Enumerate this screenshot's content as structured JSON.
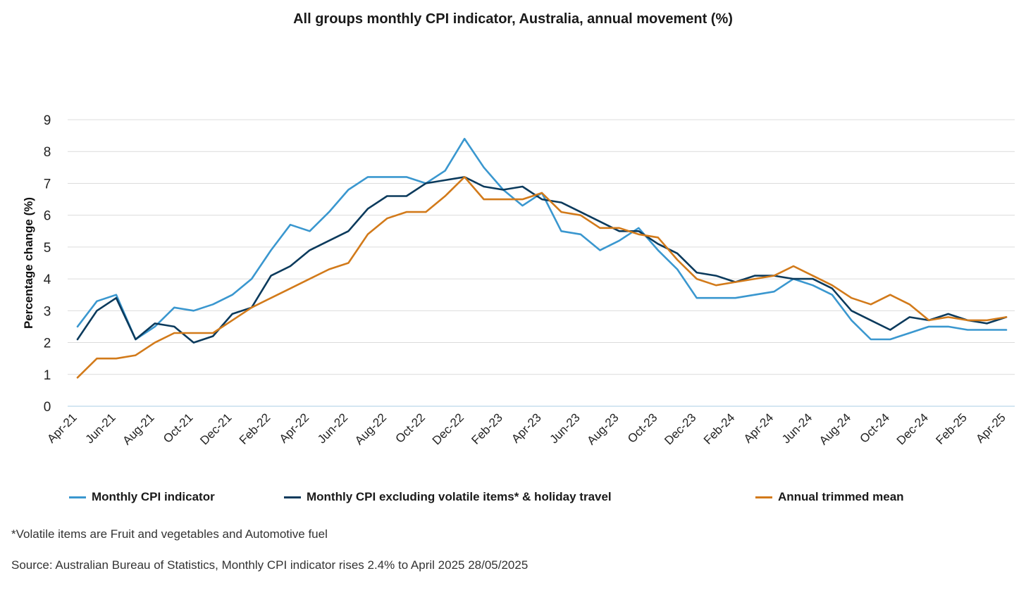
{
  "chart_data": {
    "type": "line",
    "title": "All groups monthly CPI indicator, Australia, annual movement (%)",
    "ylabel": "Percentage change (%)",
    "xlabel": "",
    "ylim": [
      0,
      9
    ],
    "yticks": [
      0,
      1,
      2,
      3,
      4,
      5,
      6,
      7,
      8,
      9
    ],
    "grid": true,
    "legend_position": "bottom",
    "x": [
      "Apr-21",
      "May-21",
      "Jun-21",
      "Jul-21",
      "Aug-21",
      "Sep-21",
      "Oct-21",
      "Nov-21",
      "Dec-21",
      "Jan-22",
      "Feb-22",
      "Mar-22",
      "Apr-22",
      "May-22",
      "Jun-22",
      "Jul-22",
      "Aug-22",
      "Sep-22",
      "Oct-22",
      "Nov-22",
      "Dec-22",
      "Jan-23",
      "Feb-23",
      "Mar-23",
      "Apr-23",
      "May-23",
      "Jun-23",
      "Jul-23",
      "Aug-23",
      "Sep-23",
      "Oct-23",
      "Nov-23",
      "Dec-23",
      "Jan-24",
      "Feb-24",
      "Mar-24",
      "Apr-24",
      "May-24",
      "Jun-24",
      "Jul-24",
      "Aug-24",
      "Sep-24",
      "Oct-24",
      "Nov-24",
      "Dec-24",
      "Jan-25",
      "Feb-25",
      "Mar-25",
      "Apr-25"
    ],
    "xtick_labels": [
      "Apr-21",
      "Jun-21",
      "Aug-21",
      "Oct-21",
      "Dec-21",
      "Feb-22",
      "Apr-22",
      "Jun-22",
      "Aug-22",
      "Oct-22",
      "Dec-22",
      "Feb-23",
      "Apr-23",
      "Jun-23",
      "Aug-23",
      "Oct-23",
      "Dec-23",
      "Feb-24",
      "Apr-24",
      "Jun-24",
      "Aug-24",
      "Oct-24",
      "Dec-24",
      "Feb-25",
      "Apr-25"
    ],
    "series": [
      {
        "name": "Monthly CPI indicator",
        "color": "#3a97cf",
        "values": [
          2.5,
          3.3,
          3.5,
          2.1,
          2.5,
          3.1,
          3.0,
          3.2,
          3.5,
          4.0,
          4.9,
          5.7,
          5.5,
          6.1,
          6.8,
          7.2,
          7.2,
          7.2,
          7.0,
          7.4,
          8.4,
          7.5,
          6.8,
          6.3,
          6.7,
          5.5,
          5.4,
          4.9,
          5.2,
          5.6,
          4.9,
          4.3,
          3.4,
          3.4,
          3.4,
          3.5,
          3.6,
          4.0,
          3.8,
          3.5,
          2.7,
          2.1,
          2.1,
          2.3,
          2.5,
          2.5,
          2.4,
          2.4,
          2.4
        ]
      },
      {
        "name": "Monthly CPI excluding volatile items* & holiday travel",
        "color": "#0b3a5c",
        "values": [
          2.1,
          3.0,
          3.4,
          2.1,
          2.6,
          2.5,
          2.0,
          2.2,
          2.9,
          3.1,
          4.1,
          4.4,
          4.9,
          5.2,
          5.5,
          6.2,
          6.6,
          6.6,
          7.0,
          7.1,
          7.2,
          6.9,
          6.8,
          6.9,
          6.5,
          6.4,
          6.1,
          5.8,
          5.5,
          5.5,
          5.1,
          4.8,
          4.2,
          4.1,
          3.9,
          4.1,
          4.1,
          4.0,
          4.0,
          3.7,
          3.0,
          2.7,
          2.4,
          2.8,
          2.7,
          2.9,
          2.7,
          2.6,
          2.8
        ]
      },
      {
        "name": "Annual trimmed mean",
        "color": "#d27a1a",
        "values": [
          0.9,
          1.5,
          1.5,
          1.6,
          2.0,
          2.3,
          2.3,
          2.3,
          2.7,
          3.1,
          3.4,
          3.7,
          4.0,
          4.3,
          4.5,
          5.4,
          5.9,
          6.1,
          6.1,
          6.6,
          7.2,
          6.5,
          6.5,
          6.5,
          6.7,
          6.1,
          6.0,
          5.6,
          5.6,
          5.4,
          5.3,
          4.6,
          4.0,
          3.8,
          3.9,
          4.0,
          4.1,
          4.4,
          4.1,
          3.8,
          3.4,
          3.2,
          3.5,
          3.2,
          2.7,
          2.8,
          2.7,
          2.7,
          2.8
        ]
      }
    ]
  },
  "footnotes": {
    "volatile_note": "*Volatile items are Fruit and vegetables and Automotive fuel",
    "source": "Source: Australian Bureau of Statistics, Monthly CPI indicator rises 2.4% to April 2025 28/05/2025"
  }
}
